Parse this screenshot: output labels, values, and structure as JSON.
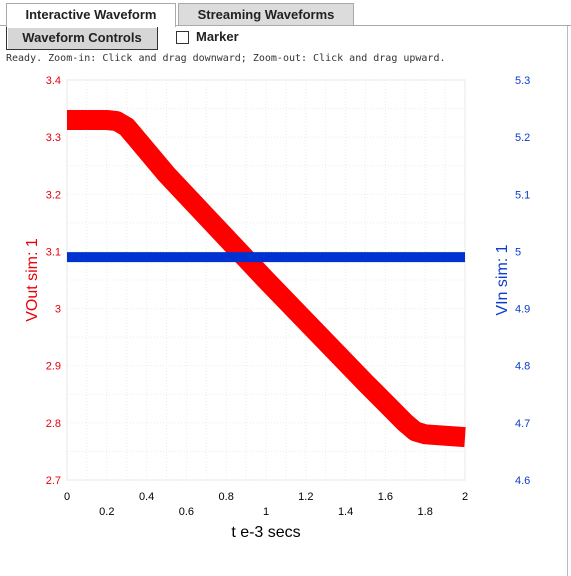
{
  "tabs": [
    {
      "label": "Interactive Waveform",
      "active": true
    },
    {
      "label": "Streaming Waveforms",
      "active": false
    }
  ],
  "controls": {
    "waveform_controls_label": "Waveform Controls",
    "marker_label": "Marker",
    "marker_checked": false
  },
  "status_text": "Ready.  Zoom-in: Click and drag downward; Zoom-out: Click and drag upward.",
  "colors": {
    "left_axis": "#e8000a",
    "right_axis": "#0a3ccc",
    "vout": "#ff0000",
    "vin": "#0032d2"
  },
  "chart_data": {
    "type": "line",
    "xlabel": "t e-3 secs",
    "xlim": [
      0,
      2
    ],
    "x_ticks_top": [
      "0",
      "0.4",
      "0.8",
      "1.2",
      "1.6",
      "2"
    ],
    "x_ticks_bottom": [
      "0.2",
      "0.6",
      "1",
      "1.4",
      "1.8"
    ],
    "x_ticks_top_values": [
      0,
      0.4,
      0.8,
      1.2,
      1.6,
      2
    ],
    "x_ticks_bottom_values": [
      0.2,
      0.6,
      1,
      1.4,
      1.8
    ],
    "y_left": {
      "label": "VOut sim:  1",
      "lim": [
        2.7,
        3.4
      ],
      "ticks": [
        "3.4",
        "3.3",
        "3.2",
        "3.1",
        "3",
        "2.9",
        "2.8",
        "2.7"
      ],
      "tick_values": [
        3.4,
        3.3,
        3.2,
        3.1,
        3.0,
        2.9,
        2.8,
        2.7
      ]
    },
    "y_right": {
      "label": "VIn sim:  1",
      "lim": [
        4.6,
        5.3
      ],
      "ticks": [
        "5.3",
        "5.2",
        "5.1",
        "5",
        "4.9",
        "4.8",
        "4.7",
        "4.6"
      ],
      "tick_values": [
        5.3,
        5.2,
        5.1,
        5.0,
        4.9,
        4.8,
        4.7,
        4.6
      ]
    },
    "grid": true,
    "series": [
      {
        "name": "VOut sim:  1",
        "axis": "left",
        "x": [
          0,
          0.2,
          0.25,
          0.3,
          0.5,
          1.0,
          1.5,
          1.7,
          1.75,
          1.8,
          2.0
        ],
        "y": [
          3.33,
          3.33,
          3.328,
          3.318,
          3.235,
          3.05,
          2.87,
          2.8,
          2.785,
          2.78,
          2.775
        ]
      },
      {
        "name": "VIn sim:  1",
        "axis": "right",
        "x": [
          0,
          2.0
        ],
        "y": [
          4.99,
          4.99
        ]
      }
    ]
  }
}
